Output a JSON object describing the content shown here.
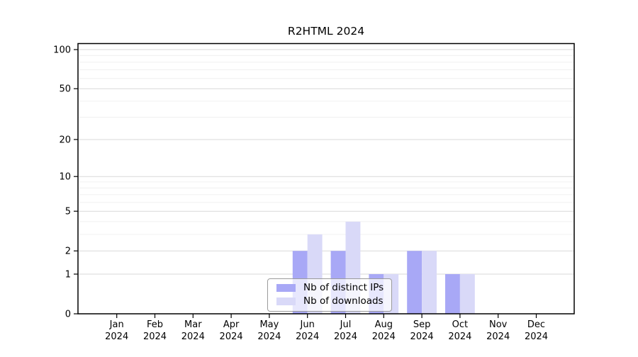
{
  "title": "R2HTML 2024",
  "chart_data": {
    "type": "bar",
    "title": "R2HTML 2024",
    "categories": [
      "Jan",
      "Feb",
      "Mar",
      "Apr",
      "May",
      "Jun",
      "Jul",
      "Aug",
      "Sep",
      "Oct",
      "Nov",
      "Dec"
    ],
    "year_label": "2024",
    "series": [
      {
        "name": "Nb of distinct IPs",
        "color": "#a8a8f6",
        "values": [
          0,
          0,
          0,
          0,
          0,
          2,
          2,
          1,
          2,
          1,
          0,
          0
        ]
      },
      {
        "name": "Nb of downloads",
        "color": "#d9d9f8",
        "values": [
          0,
          0,
          0,
          0,
          0,
          3,
          4,
          1,
          2,
          1,
          0,
          0
        ]
      }
    ],
    "yticks": [
      0,
      1,
      2,
      5,
      10,
      20,
      50,
      100
    ],
    "minor_gridlines": [
      1,
      2,
      3,
      4,
      5,
      6,
      7,
      8,
      9,
      10,
      20,
      30,
      40,
      50,
      60,
      70,
      80,
      90,
      100
    ],
    "scale": "log1p",
    "ylim": [
      0,
      111
    ],
    "grid": true,
    "legend_position": "inside-bottom-center",
    "colors": {
      "axis": "#000000",
      "grid_major": "#d9d9d9",
      "grid_minor": "#f0f0f0",
      "legend_border": "#9b9b9b"
    }
  }
}
